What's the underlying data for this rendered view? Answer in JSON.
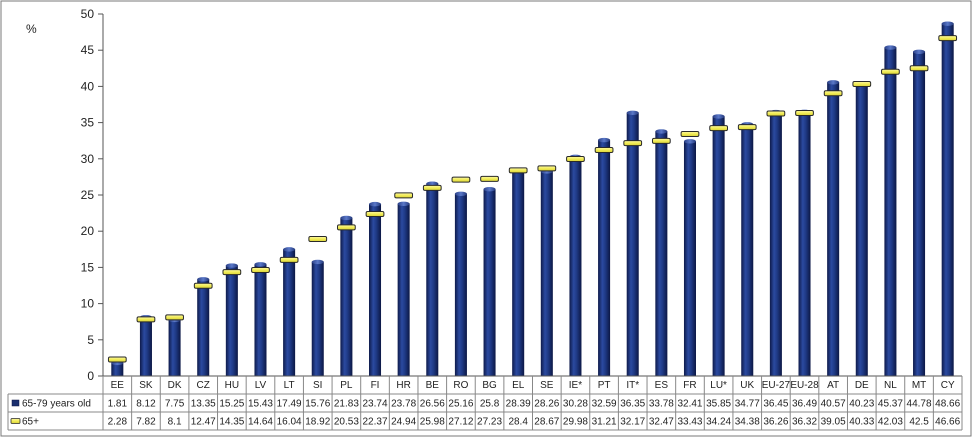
{
  "chart_data": {
    "type": "bar",
    "ylabel": "%",
    "ylim": [
      0,
      50
    ],
    "yticks": [
      0,
      5,
      10,
      15,
      20,
      25,
      30,
      35,
      40,
      45,
      50
    ],
    "grid": false,
    "legend": "table-left",
    "categories": [
      "EE",
      "SK",
      "DK",
      "CZ",
      "HU",
      "LV",
      "LT",
      "SI",
      "PL",
      "FI",
      "HR",
      "BE",
      "RO",
      "BG",
      "EL",
      "SE",
      "IE*",
      "PT",
      "IT*",
      "ES",
      "FR",
      "LU*",
      "UK",
      "EU-27",
      "EU-28",
      "AT",
      "DE",
      "NL",
      "MT",
      "CY"
    ],
    "series": [
      {
        "name": "65-79 years old",
        "mark": "bar",
        "color": "#1a2e6e",
        "values": [
          1.81,
          8.12,
          7.75,
          13.35,
          15.25,
          15.43,
          17.49,
          15.76,
          21.83,
          23.74,
          23.78,
          26.56,
          25.16,
          25.8,
          28.39,
          28.26,
          30.28,
          32.59,
          36.35,
          33.78,
          32.41,
          35.85,
          34.77,
          36.45,
          36.49,
          40.57,
          40.23,
          45.37,
          44.78,
          48.66
        ],
        "labels": [
          "1.81",
          "8.12",
          "7.75",
          "13.35",
          "15.25",
          "15.43",
          "17.49",
          "15.76",
          "21.83",
          "23.74",
          "23.78",
          "26.56",
          "25.16",
          "25.8",
          "28.39",
          "28.26",
          "30.28",
          "32.59",
          "36.35",
          "33.78",
          "32.41",
          "35.85",
          "34.77",
          "36.45",
          "36.49",
          "40.57",
          "40.23",
          "45.37",
          "44.78",
          "48.66"
        ]
      },
      {
        "name": "65+",
        "mark": "dash",
        "color": "#f5f06a",
        "values": [
          2.28,
          7.82,
          8.1,
          12.47,
          14.35,
          14.64,
          16.04,
          18.92,
          20.53,
          22.37,
          24.94,
          25.98,
          27.12,
          27.23,
          28.4,
          28.67,
          29.98,
          31.21,
          32.17,
          32.47,
          33.43,
          34.24,
          34.38,
          36.26,
          36.32,
          39.05,
          40.33,
          42.03,
          42.5,
          46.66
        ],
        "labels": [
          "2.28",
          "7.82",
          "8.1",
          "12.47",
          "14.35",
          "14.64",
          "16.04",
          "18.92",
          "20.53",
          "22.37",
          "24.94",
          "25.98",
          "27.12",
          "27.23",
          "28.4",
          "28.67",
          "29.98",
          "31.21",
          "32.17",
          "32.47",
          "33.43",
          "34.24",
          "34.38",
          "36.26",
          "36.32",
          "39.05",
          "40.33",
          "42.03",
          "42.5",
          "46.66"
        ]
      }
    ]
  }
}
